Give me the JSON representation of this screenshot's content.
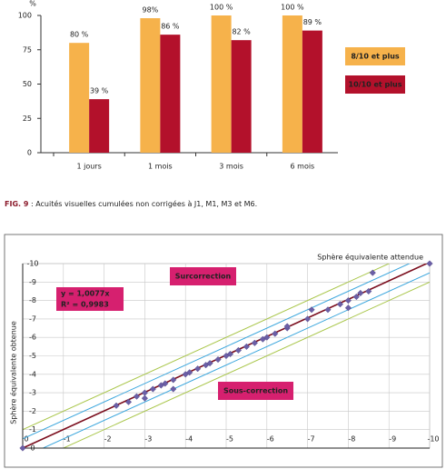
{
  "chart_data": [
    {
      "type": "bar",
      "y_unit": "%",
      "categories": [
        "1 jours",
        "1 mois",
        "3 mois",
        "6 mois"
      ],
      "series": [
        {
          "name": "8/10 et plus",
          "color": "#f6b24b",
          "values": [
            80,
            98,
            100,
            100
          ],
          "value_labels": [
            "80 %",
            "98%",
            "100 %",
            "100 %"
          ]
        },
        {
          "name": "10/10 et plus",
          "color": "#b3112b",
          "values": [
            39,
            86,
            82,
            89
          ],
          "value_labels": [
            "39 %",
            "86 %",
            "82 %",
            "89 %"
          ]
        }
      ],
      "ylim": [
        0,
        100
      ],
      "yticks": [
        0,
        25,
        50,
        75,
        100
      ]
    },
    {
      "type": "scatter",
      "title": "Sphère équivalente attendue",
      "y_label": "Sphère équivalente obtenue",
      "annotations": [
        "Surcorrection",
        "Sous-correction"
      ],
      "equation": [
        "y = 1,0077x",
        "R² = 0,9983"
      ],
      "x": [
        0,
        -2.3,
        -2.6,
        -2.8,
        -3.0,
        -3.0,
        -3.2,
        -3.4,
        -3.5,
        -3.7,
        -3.7,
        -4.0,
        -4.1,
        -4.3,
        -4.5,
        -4.6,
        -4.8,
        -5.0,
        -5.1,
        -5.3,
        -5.5,
        -5.7,
        -5.9,
        -6.0,
        -6.2,
        -6.5,
        -6.5,
        -7.0,
        -7.1,
        -7.5,
        -7.8,
        -8.0,
        -8.0,
        -8.2,
        -8.3,
        -8.5,
        -8.6,
        -10
      ],
      "y": [
        0,
        -2.3,
        -2.5,
        -2.8,
        -3.0,
        -2.7,
        -3.2,
        -3.4,
        -3.5,
        -3.7,
        -3.2,
        -4.0,
        -4.1,
        -4.3,
        -4.5,
        -4.6,
        -4.8,
        -5.0,
        -5.1,
        -5.3,
        -5.5,
        -5.7,
        -5.9,
        -6.0,
        -6.2,
        -6.5,
        -6.6,
        -7.0,
        -7.5,
        -7.5,
        -7.8,
        -8.0,
        -7.6,
        -8.2,
        -8.4,
        -8.5,
        -9.5,
        -10
      ],
      "color": "#6b5fa6",
      "xlim": [
        0,
        -10
      ],
      "ylim": [
        0,
        -10
      ],
      "xticks": [
        0,
        -1,
        -2,
        -3,
        -4,
        -5,
        -6,
        -7,
        -8,
        -9,
        -10
      ],
      "yticks": [
        0,
        -1,
        -2,
        -3,
        -4,
        -5,
        -6,
        -7,
        -8,
        -9,
        -10
      ],
      "grid": true,
      "trend_slope": 1.0077,
      "trend_color": "#7a0c1c",
      "bands": [
        {
          "offset": 0.5,
          "color": "#3aa6dd"
        },
        {
          "offset": 1,
          "color": "#a9c64a"
        }
      ]
    }
  ],
  "caption": {
    "label": "FIG. 9",
    "text": " : Acuités visuelles cumulées non corrigées à J1, M1, M3 et M6."
  }
}
